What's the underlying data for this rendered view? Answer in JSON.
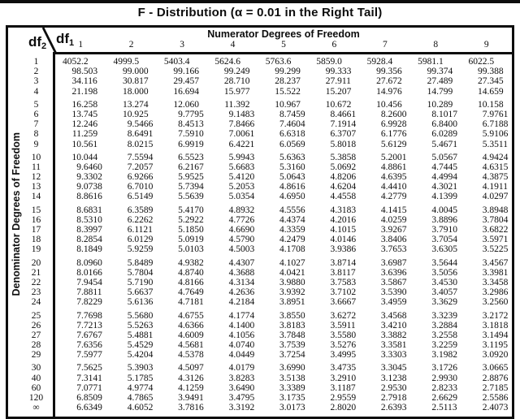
{
  "title": "F - Distribution (α = 0.01 in the Right Tail)",
  "corner": {
    "row_var": "df",
    "row_sub": "2",
    "col_var": "df",
    "col_sub": "1"
  },
  "header": {
    "numerator_label": "Numerator Degrees of Freedom",
    "columns": [
      "1",
      "2",
      "3",
      "4",
      "5",
      "6",
      "7",
      "8",
      "9"
    ]
  },
  "left_axis_label": "Denominator Degrees of Freedom",
  "table": {
    "row_groups": [
      {
        "rows": [
          {
            "label": "1",
            "values": [
              "4052.2",
              "4999.5",
              "5403.4",
              "5624.6",
              "5763.6",
              "5859.0",
              "5928.4",
              "5981.1",
              "6022.5"
            ]
          },
          {
            "label": "2",
            "values": [
              "98.503",
              "99.000",
              "99.166",
              "99.249",
              "99.299",
              "99.333",
              "99.356",
              "99.374",
              "99.388"
            ]
          },
          {
            "label": "3",
            "values": [
              "34.116",
              "30.817",
              "29.457",
              "28.710",
              "28.237",
              "27.911",
              "27.672",
              "27.489",
              "27.345"
            ]
          },
          {
            "label": "4",
            "values": [
              "21.198",
              "18.000",
              "16.694",
              "15.977",
              "15.522",
              "15.207",
              "14.976",
              "14.799",
              "14.659"
            ]
          }
        ]
      },
      {
        "rows": [
          {
            "label": "5",
            "values": [
              "16.258",
              "13.274",
              "12.060",
              "11.392",
              "10.967",
              "10.672",
              "10.456",
              "10.289",
              "10.158"
            ]
          },
          {
            "label": "6",
            "values": [
              "13.745",
              "10.925",
              "9.7795",
              "9.1483",
              "8.7459",
              "8.4661",
              "8.2600",
              "8.1017",
              "7.9761"
            ]
          },
          {
            "label": "7",
            "values": [
              "12.246",
              "9.5466",
              "8.4513",
              "7.8466",
              "7.4604",
              "7.1914",
              "6.9928",
              "6.8400",
              "6.7188"
            ]
          },
          {
            "label": "8",
            "values": [
              "11.259",
              "8.6491",
              "7.5910",
              "7.0061",
              "6.6318",
              "6.3707",
              "6.1776",
              "6.0289",
              "5.9106"
            ]
          },
          {
            "label": "9",
            "values": [
              "10.561",
              "8.0215",
              "6.9919",
              "6.4221",
              "6.0569",
              "5.8018",
              "5.6129",
              "5.4671",
              "5.3511"
            ]
          }
        ]
      },
      {
        "rows": [
          {
            "label": "10",
            "values": [
              "10.044",
              "7.5594",
              "6.5523",
              "5.9943",
              "5.6363",
              "5.3858",
              "5.2001",
              "5.0567",
              "4.9424"
            ]
          },
          {
            "label": "11",
            "values": [
              "9.6460",
              "7.2057",
              "6.2167",
              "5.6683",
              "5.3160",
              "5.0692",
              "4.8861",
              "4.7445",
              "4.6315"
            ]
          },
          {
            "label": "12",
            "values": [
              "9.3302",
              "6.9266",
              "5.9525",
              "5.4120",
              "5.0643",
              "4.8206",
              "4.6395",
              "4.4994",
              "4.3875"
            ]
          },
          {
            "label": "13",
            "values": [
              "9.0738",
              "6.7010",
              "5.7394",
              "5.2053",
              "4.8616",
              "4.6204",
              "4.4410",
              "4.3021",
              "4.1911"
            ]
          },
          {
            "label": "14",
            "values": [
              "8.8616",
              "6.5149",
              "5.5639",
              "5.0354",
              "4.6950",
              "4.4558",
              "4.2779",
              "4.1399",
              "4.0297"
            ]
          }
        ]
      },
      {
        "rows": [
          {
            "label": "15",
            "values": [
              "8.6831",
              "6.3589",
              "5.4170",
              "4.8932",
              "4.5556",
              "4.3183",
              "4.1415",
              "4.0045",
              "3.8948"
            ]
          },
          {
            "label": "16",
            "values": [
              "8.5310",
              "6.2262",
              "5.2922",
              "4.7726",
              "4.4374",
              "4.2016",
              "4.0259",
              "3.8896",
              "3.7804"
            ]
          },
          {
            "label": "17",
            "values": [
              "8.3997",
              "6.1121",
              "5.1850",
              "4.6690",
              "4.3359",
              "4.1015",
              "3.9267",
              "3.7910",
              "3.6822"
            ]
          },
          {
            "label": "18",
            "values": [
              "8.2854",
              "6.0129",
              "5.0919",
              "4.5790",
              "4.2479",
              "4.0146",
              "3.8406",
              "3.7054",
              "3.5971"
            ]
          },
          {
            "label": "19",
            "values": [
              "8.1849",
              "5.9259",
              "5.0103",
              "4.5003",
              "4.1708",
              "3.9386",
              "3.7653",
              "3.6305",
              "3.5225"
            ]
          }
        ]
      },
      {
        "rows": [
          {
            "label": "20",
            "values": [
              "8.0960",
              "5.8489",
              "4.9382",
              "4.4307",
              "4.1027",
              "3.8714",
              "3.6987",
              "3.5644",
              "3.4567"
            ]
          },
          {
            "label": "21",
            "values": [
              "8.0166",
              "5.7804",
              "4.8740",
              "4.3688",
              "4.0421",
              "3.8117",
              "3.6396",
              "3.5056",
              "3.3981"
            ]
          },
          {
            "label": "22",
            "values": [
              "7.9454",
              "5.7190",
              "4.8166",
              "4.3134",
              "3.9880",
              "3.7583",
              "3.5867",
              "3.4530",
              "3.3458"
            ]
          },
          {
            "label": "23",
            "values": [
              "7.8811",
              "5.6637",
              "4.7649",
              "4.2636",
              "3.9392",
              "3.7102",
              "3.5390",
              "3.4057",
              "3.2986"
            ]
          },
          {
            "label": "24",
            "values": [
              "7.8229",
              "5.6136",
              "4.7181",
              "4.2184",
              "3.8951",
              "3.6667",
              "3.4959",
              "3.3629",
              "3.2560"
            ]
          }
        ]
      },
      {
        "rows": [
          {
            "label": "25",
            "values": [
              "7.7698",
              "5.5680",
              "4.6755",
              "4.1774",
              "3.8550",
              "3.6272",
              "3.4568",
              "3.3239",
              "3.2172"
            ]
          },
          {
            "label": "26",
            "values": [
              "7.7213",
              "5.5263",
              "4.6366",
              "4.1400",
              "3.8183",
              "3.5911",
              "3.4210",
              "3.2884",
              "3.1818"
            ]
          },
          {
            "label": "27",
            "values": [
              "7.6767",
              "5.4881",
              "4.6009",
              "4.1056",
              "3.7848",
              "3.5580",
              "3.3882",
              "3.2558",
              "3.1494"
            ]
          },
          {
            "label": "28",
            "values": [
              "7.6356",
              "5.4529",
              "4.5681",
              "4.0740",
              "3.7539",
              "3.5276",
              "3.3581",
              "3.2259",
              "3.1195"
            ]
          },
          {
            "label": "29",
            "values": [
              "7.5977",
              "5.4204",
              "4.5378",
              "4.0449",
              "3.7254",
              "3.4995",
              "3.3303",
              "3.1982",
              "3.0920"
            ]
          }
        ]
      },
      {
        "rows": [
          {
            "label": "30",
            "values": [
              "7.5625",
              "5.3903",
              "4.5097",
              "4.0179",
              "3.6990",
              "3.4735",
              "3.3045",
              "3.1726",
              "3.0665"
            ]
          },
          {
            "label": "40",
            "values": [
              "7.3141",
              "5.1785",
              "4.3126",
              "3.8283",
              "3.5138",
              "3.2910",
              "3.1238",
              "2.9930",
              "2.8876"
            ]
          },
          {
            "label": "60",
            "values": [
              "7.0771",
              "4.9774",
              "4.1259",
              "3.6490",
              "3.3389",
              "3.1187",
              "2.9530",
              "2.8233",
              "2.7185"
            ]
          },
          {
            "label": "120",
            "values": [
              "6.8509",
              "4.7865",
              "3.9491",
              "3.4795",
              "3.1735",
              "2.9559",
              "2.7918",
              "2.6629",
              "2.5586"
            ]
          },
          {
            "label": "∞",
            "values": [
              "6.6349",
              "4.6052",
              "3.7816",
              "3.3192",
              "3.0173",
              "2.8020",
              "2.6393",
              "2.5113",
              "2.4073"
            ]
          }
        ]
      }
    ]
  }
}
